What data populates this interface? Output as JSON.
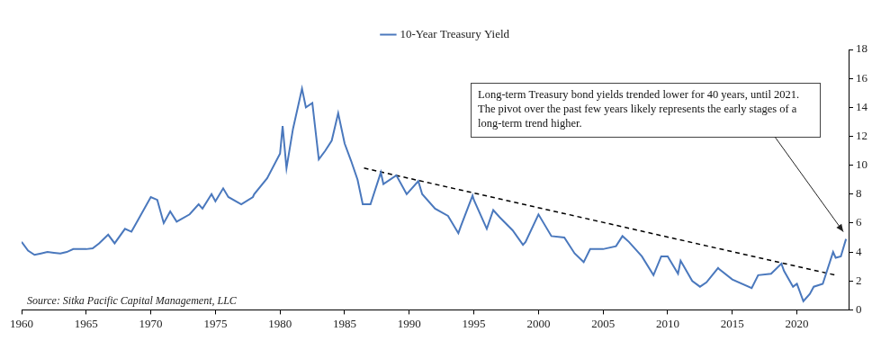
{
  "chart_data": {
    "type": "line",
    "legend": "top",
    "grid": false,
    "xlim": [
      1960,
      2024
    ],
    "xticks": [
      1960,
      1965,
      1970,
      1975,
      1980,
      1985,
      1990,
      1995,
      2000,
      2005,
      2010,
      2015,
      2020
    ],
    "ylim": [
      0,
      18
    ],
    "yticks": [
      0,
      2,
      4,
      6,
      8,
      10,
      12,
      14,
      16,
      18
    ],
    "annotation": "Long-term Treasury bond yields trended lower for 40 years, until 2021.  The pivot over the past few years likely represents the early stages of a long-term trend higher.",
    "source": "Source: Sitka Pacific Capital Management, LLC",
    "series": [
      {
        "name": "10-Year Treasury Yield",
        "color": "#4a78bd",
        "line_style": "solid",
        "marker": "none",
        "x": [
          1960,
          1960.5,
          1961,
          1961.5,
          1962,
          1962.5,
          1963,
          1963.5,
          1964,
          1965,
          1965.5,
          1966,
          1966.7,
          1967.2,
          1968,
          1968.5,
          1969,
          1970,
          1970.5,
          1971,
          1971.5,
          1972,
          1973,
          1973.7,
          1974,
          1974.7,
          1975,
          1975.6,
          1976,
          1977,
          1977.9,
          1978,
          1979,
          1980,
          1980.2,
          1980.5,
          1981,
          1981.7,
          1982,
          1982.5,
          1983,
          1983.5,
          1984,
          1984.5,
          1985,
          1985.5,
          1986,
          1986.4,
          1987,
          1987.8,
          1988,
          1989,
          1989.8,
          1990,
          1990.7,
          1991,
          1992,
          1993,
          1993.8,
          1994,
          1994.9,
          1995,
          1996,
          1996.5,
          1997,
          1998,
          1998.8,
          1999,
          2000,
          2001,
          2002,
          2002.8,
          2003.5,
          2004,
          2005,
          2006,
          2006.5,
          2007,
          2008,
          2008.9,
          2009.5,
          2010,
          2010.8,
          2011,
          2011.9,
          2012.5,
          2013,
          2013.9,
          2014,
          2015,
          2016.5,
          2017,
          2018,
          2018.8,
          2019,
          2019.7,
          2020,
          2020.5,
          2021,
          2021.3,
          2022,
          2022.8,
          2023,
          2023.4,
          2023.8
        ],
        "values": [
          4.7,
          4.1,
          3.8,
          3.9,
          4.0,
          3.95,
          3.9,
          4.0,
          4.2,
          4.2,
          4.25,
          4.6,
          5.2,
          4.6,
          5.6,
          5.4,
          6.2,
          7.8,
          7.6,
          6.0,
          6.8,
          6.1,
          6.6,
          7.3,
          7.0,
          8.0,
          7.5,
          8.4,
          7.8,
          7.3,
          7.8,
          8.0,
          9.1,
          10.8,
          12.7,
          9.8,
          12.5,
          15.3,
          14.0,
          14.3,
          10.4,
          11.0,
          11.7,
          13.6,
          11.5,
          10.3,
          9.0,
          7.3,
          7.3,
          9.5,
          8.7,
          9.3,
          8.0,
          8.2,
          8.9,
          8.0,
          7.0,
          6.5,
          5.3,
          5.8,
          7.9,
          7.6,
          5.6,
          6.9,
          6.4,
          5.5,
          4.5,
          4.7,
          6.6,
          5.1,
          5.0,
          3.9,
          3.3,
          4.2,
          4.2,
          4.4,
          5.1,
          4.7,
          3.7,
          2.4,
          3.7,
          3.7,
          2.5,
          3.4,
          2.0,
          1.6,
          1.9,
          2.9,
          2.8,
          2.1,
          1.5,
          2.4,
          2.5,
          3.2,
          2.7,
          1.6,
          1.8,
          0.6,
          1.1,
          1.6,
          1.8,
          4.0,
          3.6,
          3.7,
          4.9
        ]
      },
      {
        "color": "#000000",
        "line_style": "dashed",
        "marker": "none",
        "x": [
          1986.5,
          2023
        ],
        "values": [
          9.8,
          2.4
        ]
      }
    ]
  }
}
